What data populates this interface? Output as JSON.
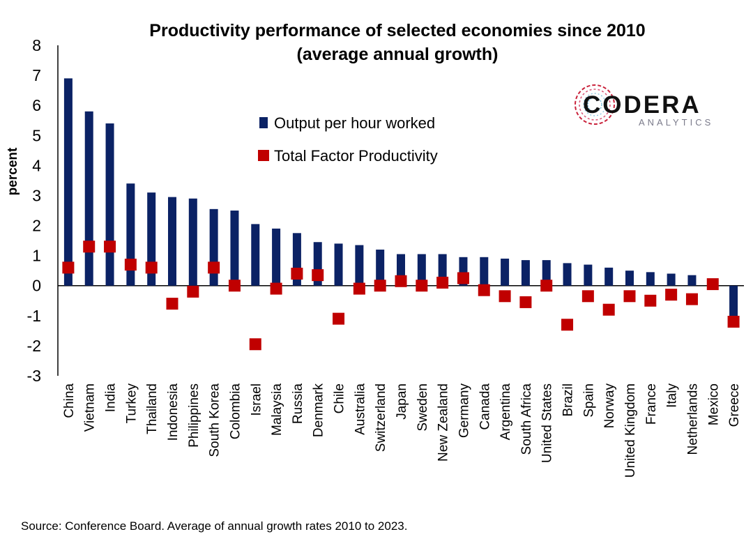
{
  "chart_data": {
    "type": "bar",
    "title_line1": "Productivity performance of selected economies since 2010",
    "title_line2": "(average annual growth)",
    "ylabel": "percent",
    "xlabel": "",
    "ylim": [
      -3,
      8
    ],
    "yticks": [
      8,
      7,
      6,
      5,
      4,
      3,
      2,
      1,
      0,
      -1,
      -2,
      -3
    ],
    "categories": [
      "China",
      "Vietnam",
      "India",
      "Turkey",
      "Thailand",
      "Indonesia",
      "Philippines",
      "South Korea",
      "Colombia",
      "Israel",
      "Malaysia",
      "Russia",
      "Denmark",
      "Chile",
      "Australia",
      "Switzerland",
      "Japan",
      "Sweden",
      "New Zealand",
      "Germany",
      "Canada",
      "Argentina",
      "South Africa",
      "United States",
      "Brazil",
      "Spain",
      "Norway",
      "United Kingdom",
      "France",
      "Italy",
      "Netherlands",
      "Mexico",
      "Greece"
    ],
    "series": [
      {
        "name": "Output per hour worked",
        "mark": "bar",
        "color": "#0b2265",
        "values": [
          6.9,
          5.8,
          5.4,
          3.4,
          3.1,
          2.95,
          2.9,
          2.55,
          2.5,
          2.05,
          1.9,
          1.75,
          1.45,
          1.4,
          1.35,
          1.2,
          1.05,
          1.05,
          1.05,
          0.95,
          0.95,
          0.9,
          0.85,
          0.85,
          0.75,
          0.7,
          0.6,
          0.5,
          0.45,
          0.4,
          0.35,
          0.0,
          -1.1
        ]
      },
      {
        "name": "Total Factor Productivity",
        "mark": "square",
        "color": "#c00000",
        "values": [
          0.6,
          1.3,
          1.3,
          0.7,
          0.6,
          -0.6,
          -0.2,
          0.6,
          0.0,
          -1.95,
          -0.1,
          0.4,
          0.35,
          -1.1,
          -0.1,
          0.0,
          0.15,
          0.0,
          0.1,
          0.25,
          -0.15,
          -0.35,
          -0.55,
          0.0,
          -1.3,
          -0.35,
          -0.8,
          -0.35,
          -0.5,
          -0.3,
          -0.45,
          0.05,
          -1.2
        ]
      }
    ],
    "legend_position": "top-center",
    "grid": false,
    "source": "Source: Conference Board. Average of annual growth rates 2010 to 2023."
  },
  "logo": {
    "name": "CODERA",
    "tagline": "ANALYTICS"
  }
}
